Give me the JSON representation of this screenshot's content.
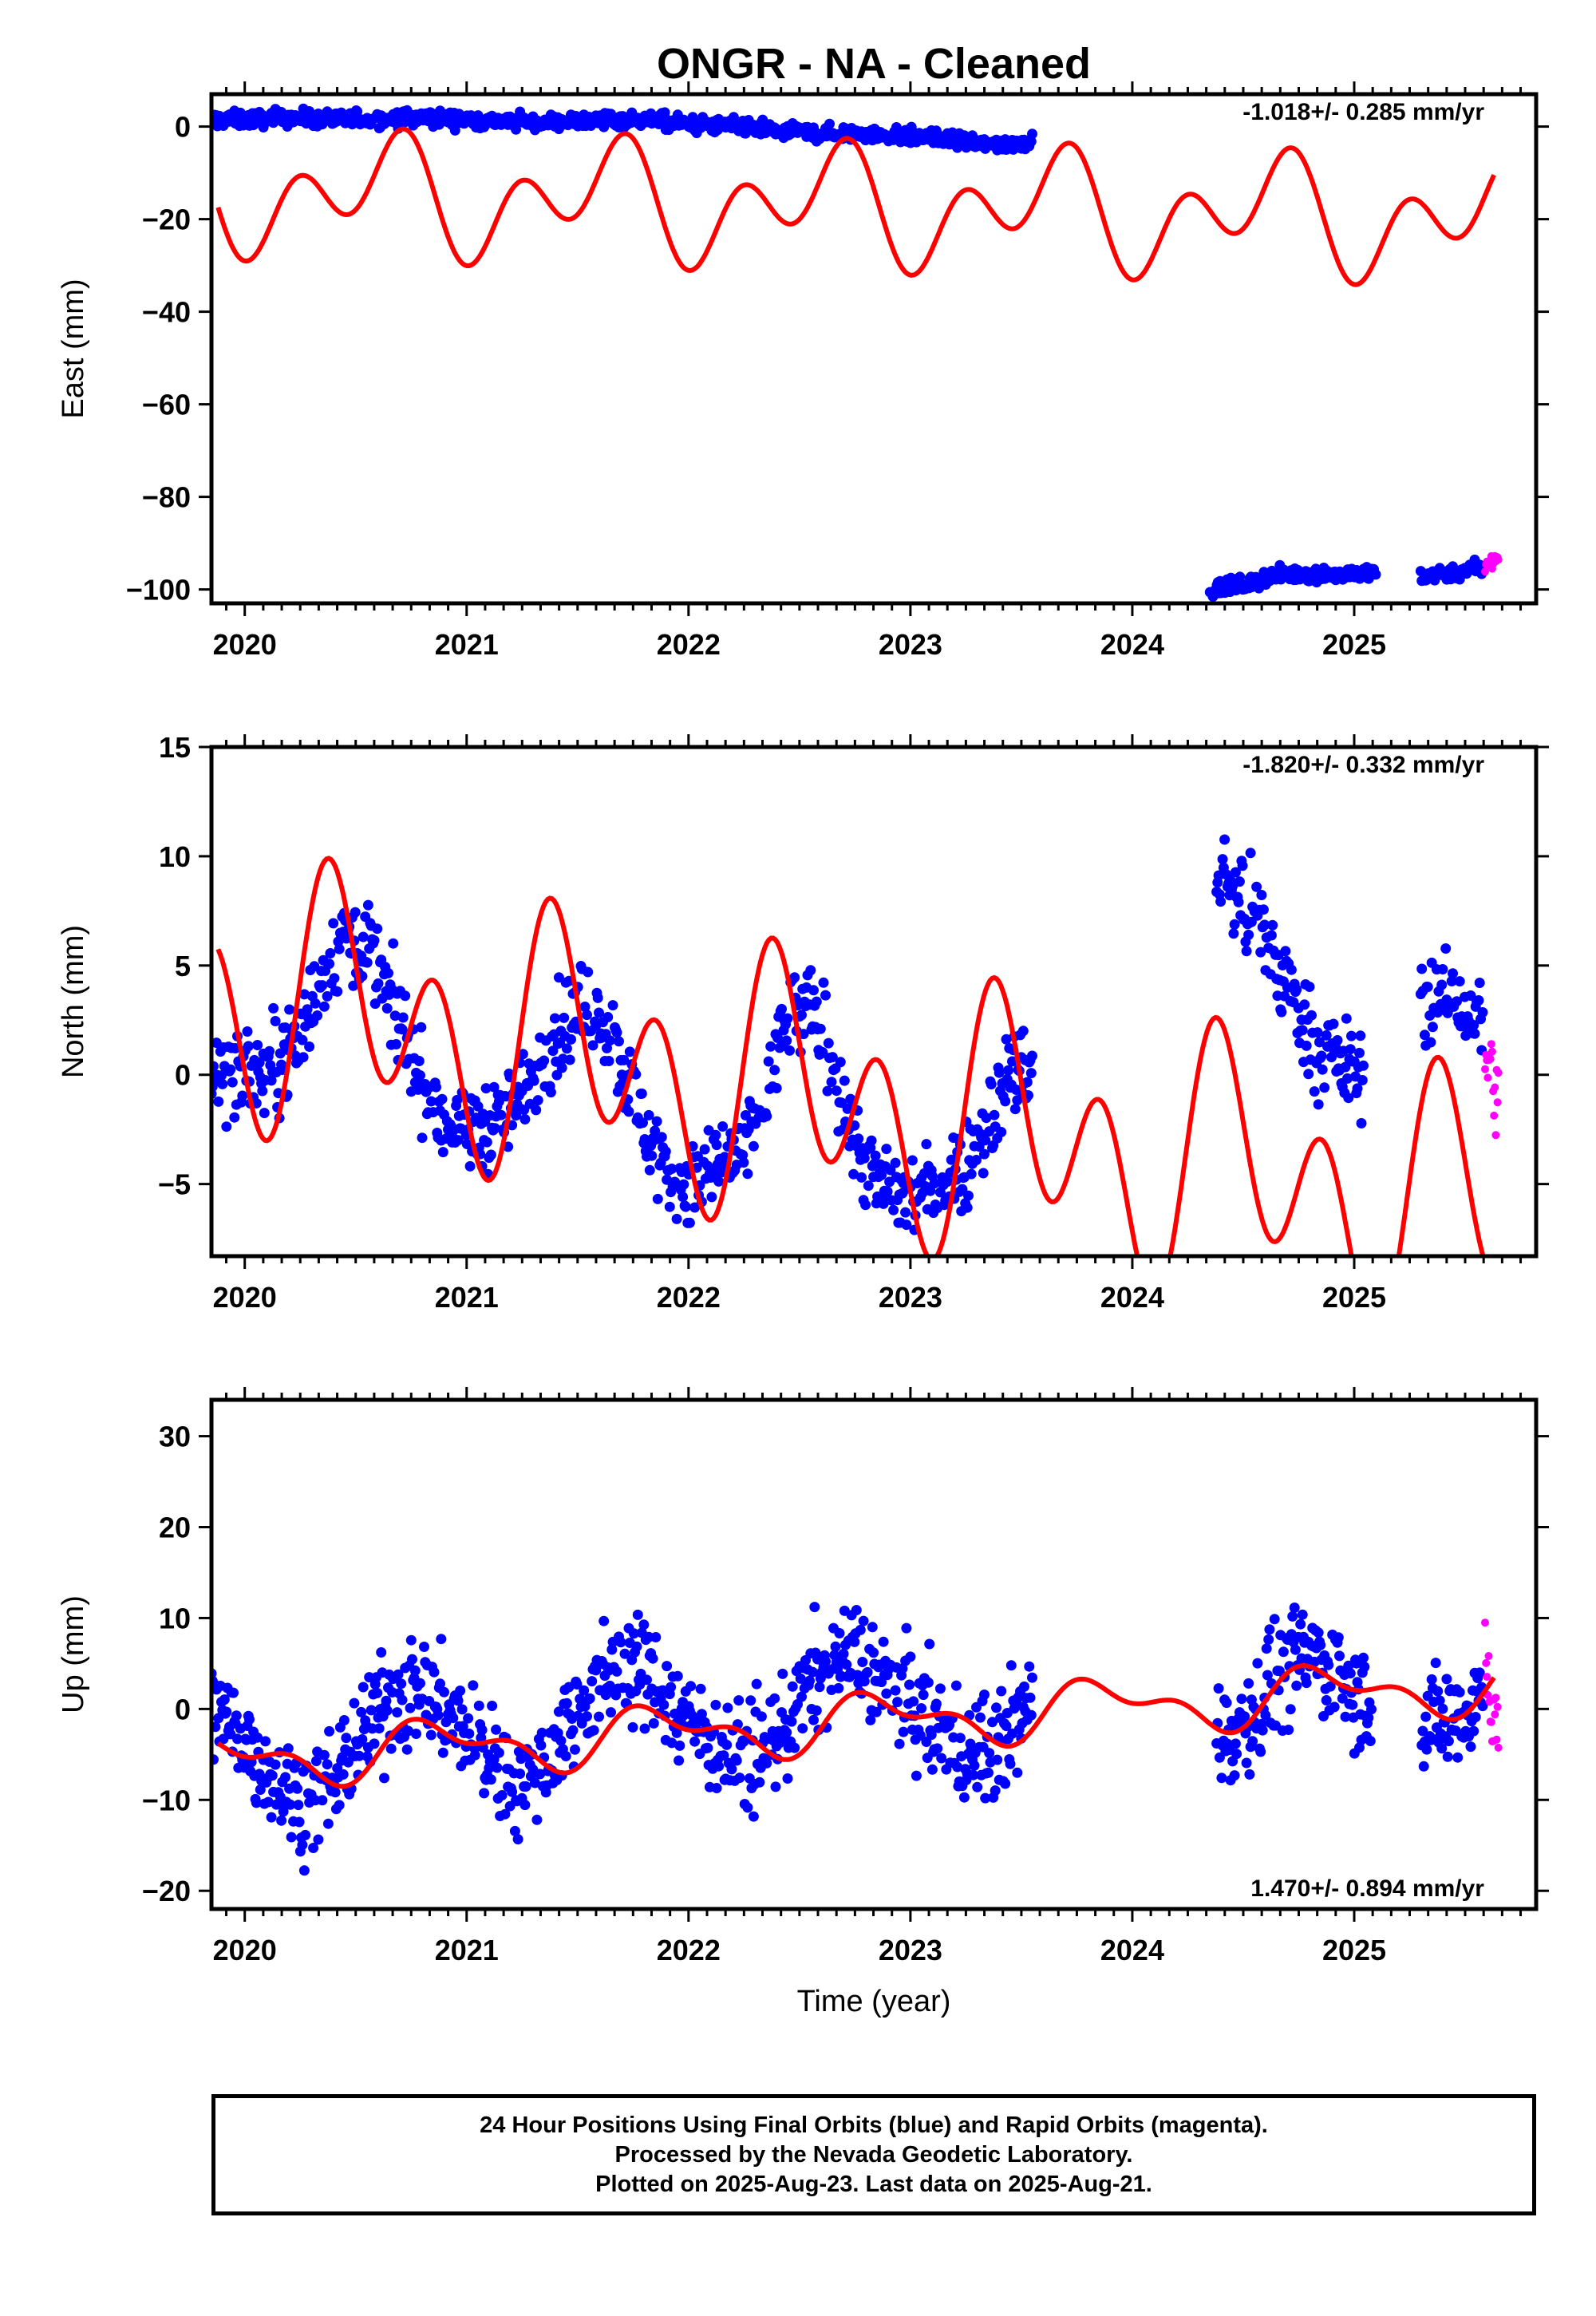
{
  "title": "ONGR  - NA - Cleaned",
  "xlabel": "Time (year)",
  "caption": {
    "line1": "24 Hour Positions Using Final Orbits (blue) and Rapid Orbits (magenta).",
    "line2": "Processed by the Nevada Geodetic Laboratory.",
    "line3": "Plotted on 2025-Aug-23. Last data on 2025-Aug-21."
  },
  "colors": {
    "final": "#0000ff",
    "rapid": "#ff00ff",
    "model": "#ff0000",
    "axis": "#000000"
  },
  "chart_data": [
    {
      "type": "scatter",
      "panel": "east",
      "ylabel": "East (mm)",
      "rate_label": "-1.018+/- 0.285 mm/yr",
      "xlim": [
        2019.85,
        2025.82
      ],
      "ylim": [
        -103,
        7
      ],
      "xticks": [
        2020,
        2021,
        2022,
        2023,
        2024,
        2025
      ],
      "yticks": [
        0,
        -20,
        -40,
        -60,
        -80,
        -100
      ],
      "series": [
        {
          "role": "final",
          "segments": [
            {
              "x": [
                2019.85,
                2020.0,
                2020.2,
                2020.4,
                2020.6,
                2020.8,
                2021.0,
                2021.2,
                2021.4,
                2021.6,
                2021.8,
                2022.0,
                2022.2,
                2022.4,
                2022.6,
                2022.8,
                2023.0,
                2023.2,
                2023.4,
                2023.55
              ],
              "y": [
                1.5,
                1.5,
                2,
                1.5,
                1.5,
                2,
                1.5,
                1,
                1,
                1.5,
                1.5,
                0.5,
                0,
                -1,
                -1.5,
                -1.5,
                -2,
                -3,
                -4,
                -3
              ]
            },
            {
              "x": [
                2024.35,
                2024.5,
                2024.65,
                2024.8,
                2024.95,
                2025.1
              ],
              "y": [
                -100,
                -99,
                -97,
                -96.5,
                -97,
                -96.5
              ]
            },
            {
              "x": [
                2025.3,
                2025.4,
                2025.5,
                2025.58
              ],
              "y": [
                -97,
                -96.5,
                -96,
                -95.5
              ]
            }
          ]
        },
        {
          "role": "rapid",
          "segments": [
            {
              "x": [
                2025.59,
                2025.65
              ],
              "y": [
                -95,
                -93
              ]
            }
          ]
        }
      ],
      "model": {
        "x0": 2019.88,
        "x1": 2025.63,
        "a": -16.45,
        "b": -1.018,
        "amp1": 7.5,
        "ph1": 0.36,
        "amp2": 9.0,
        "ph2": 0.11
      }
    },
    {
      "type": "scatter",
      "panel": "north",
      "ylabel": "North (mm)",
      "rate_label": "-1.820+/- 0.332 mm/yr",
      "xlim": [
        2019.85,
        2025.82
      ],
      "ylim": [
        -8.3,
        15
      ],
      "xticks": [
        2020,
        2021,
        2022,
        2023,
        2024,
        2025
      ],
      "yticks": [
        15,
        10,
        5,
        0,
        -5
      ],
      "series": [
        {
          "role": "final",
          "segments": [
            {
              "x": [
                2019.85,
                2019.95,
                2020.05,
                2020.15,
                2020.25,
                2020.35,
                2020.45,
                2020.55,
                2020.65,
                2020.75,
                2020.85,
                2020.95,
                2021.05,
                2021.15,
                2021.25,
                2021.35,
                2021.45,
                2021.55,
                2021.65,
                2021.75,
                2021.85,
                2021.95,
                2022.05,
                2022.15,
                2022.25,
                2022.35,
                2022.45,
                2022.55,
                2022.65,
                2022.75,
                2022.85,
                2022.95,
                2023.05,
                2023.15,
                2023.25,
                2023.35,
                2023.45,
                2023.55
              ],
              "y": [
                0,
                0.2,
                0,
                0.5,
                2,
                4.5,
                6.5,
                6,
                3.5,
                1,
                -1.5,
                -2.5,
                -2.5,
                -2,
                -1,
                1,
                2.5,
                3,
                2,
                -1,
                -3.5,
                -5,
                -5,
                -4,
                -3.5,
                -1,
                2.5,
                3,
                0.5,
                -3,
                -5,
                -5.5,
                -5.5,
                -5,
                -4,
                -2,
                0,
                0.5
              ]
            },
            {
              "x": [
                2024.38,
                2024.45,
                2024.55,
                2024.65,
                2024.75,
                2024.85,
                2024.95,
                2025.05
              ],
              "y": [
                9,
                8.5,
                7,
                5,
                3,
                1,
                0.5,
                0
              ]
            },
            {
              "x": [
                2025.3,
                2025.4,
                2025.5,
                2025.58
              ],
              "y": [
                3.5,
                3.5,
                3,
                2.5
              ]
            }
          ]
        },
        {
          "role": "rapid",
          "segments": [
            {
              "x": [
                2025.59,
                2025.65
              ],
              "y": [
                1,
                -1
              ]
            }
          ]
        }
      ],
      "model": {
        "x0": 2019.88,
        "x1": 2025.63,
        "a": 0.0,
        "b": -1.82,
        "amp1": 3.0,
        "ph1": 0.22,
        "amp2": 4.5,
        "ph2": 0.24
      }
    },
    {
      "type": "scatter",
      "panel": "up",
      "ylabel": "Up (mm)",
      "rate_label": "1.470+/- 0.894 mm/yr",
      "xlim": [
        2019.85,
        2025.82
      ],
      "ylim": [
        -22,
        34
      ],
      "xticks": [
        2020,
        2021,
        2022,
        2023,
        2024,
        2025
      ],
      "yticks": [
        30,
        20,
        10,
        0,
        -10,
        -20
      ],
      "series": [
        {
          "role": "final",
          "segments": [
            {
              "x": [
                2019.85,
                2019.95,
                2020.05,
                2020.15,
                2020.25,
                2020.35,
                2020.45,
                2020.55,
                2020.65,
                2020.75,
                2020.85,
                2020.95,
                2021.05,
                2021.15,
                2021.25,
                2021.35,
                2021.45,
                2021.55,
                2021.65,
                2021.75,
                2021.85,
                2021.95,
                2022.05,
                2022.15,
                2022.25,
                2022.35,
                2022.45,
                2022.55,
                2022.65,
                2022.75,
                2022.85,
                2022.95,
                2023.05,
                2023.15,
                2023.25,
                2023.35,
                2023.45,
                2023.55
              ],
              "y": [
                0,
                -2,
                -5,
                -8,
                -10,
                -9,
                -6,
                -2,
                1,
                2,
                1,
                -1,
                -4,
                -7,
                -8,
                -6,
                -2,
                2,
                4,
                5,
                3,
                0,
                -2,
                -4,
                -6,
                -5,
                -1,
                3,
                5,
                6,
                4,
                1,
                -1,
                -3,
                -5,
                -5,
                -2,
                1
              ]
            },
            {
              "x": [
                2024.38,
                2024.48,
                2024.58,
                2024.68,
                2024.78,
                2024.88,
                2024.98,
                2025.08
              ],
              "y": [
                -3,
                -2,
                1,
                4,
                6,
                5,
                3,
                1
              ]
            },
            {
              "x": [
                2025.3,
                2025.4,
                2025.5,
                2025.58
              ],
              "y": [
                -3,
                -1,
                0,
                2
              ]
            }
          ]
        },
        {
          "role": "rapid",
          "segments": [
            {
              "x": [
                2025.59,
                2025.65
              ],
              "y": [
                5,
                -2
              ]
            }
          ]
        }
      ],
      "model": {
        "x0": 2019.88,
        "x1": 2025.63,
        "a": -2.6,
        "b": 1.47,
        "amp1": 2.5,
        "ph1": 0.62,
        "amp2": 1.5,
        "ph2": 0.1
      }
    }
  ]
}
